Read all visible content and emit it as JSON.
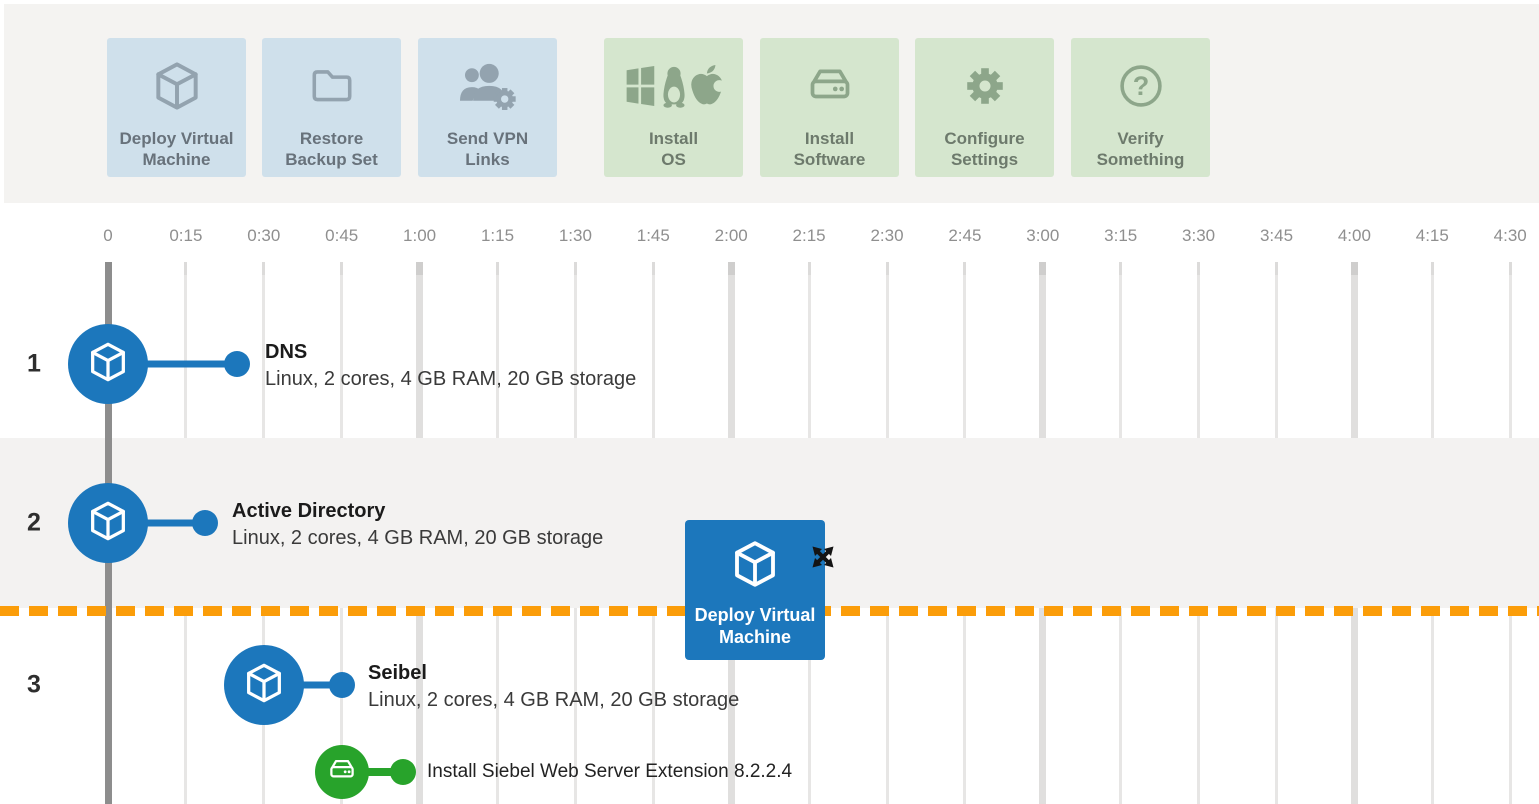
{
  "toolbar": {
    "buttons": [
      {
        "id": "deploy-virtual-machine",
        "label": "Deploy Virtual\nMachine",
        "icon": "cube-icon",
        "group": "blue"
      },
      {
        "id": "restore-backup-set",
        "label": "Restore\nBackup Set",
        "icon": "folder-icon",
        "group": "blue"
      },
      {
        "id": "send-vpn-links",
        "label": "Send VPN\nLinks",
        "icon": "users-gear-icon",
        "group": "blue"
      },
      {
        "id": "install-os",
        "label": "Install\nOS",
        "icon": "os-logos-icon",
        "group": "green"
      },
      {
        "id": "install-software",
        "label": "Install\nSoftware",
        "icon": "drive-icon",
        "group": "green"
      },
      {
        "id": "configure-settings",
        "label": "Configure\nSettings",
        "icon": "gear-icon",
        "group": "green"
      },
      {
        "id": "verify-something",
        "label": "Verify\nSomething",
        "icon": "question-icon",
        "group": "green"
      }
    ]
  },
  "timeline": {
    "axis_ticks": [
      "0",
      "0:15",
      "0:30",
      "0:45",
      "1:00",
      "1:15",
      "1:30",
      "1:45",
      "2:00",
      "2:15",
      "2:30",
      "2:45",
      "3:00",
      "3:15",
      "3:30",
      "3:45",
      "4:00",
      "4:15",
      "4:30"
    ],
    "hour_ticks": [
      "0",
      "1:00",
      "2:00",
      "3:00",
      "4:00"
    ]
  },
  "rows": [
    {
      "number": "1",
      "title": "DNS",
      "subtitle": "Linux, 2 cores, 4 GB RAM, 20 GB storage",
      "icon": "cube-icon",
      "start": "0"
    },
    {
      "number": "2",
      "title": "Active Directory",
      "subtitle": "Linux, 2 cores, 4 GB RAM, 20 GB storage",
      "icon": "cube-icon",
      "start": "0"
    },
    {
      "number": "3",
      "title": "Seibel",
      "subtitle": "Linux, 2 cores, 4 GB RAM, 20 GB storage",
      "icon": "cube-icon",
      "start": "0:30"
    }
  ],
  "subtasks": [
    {
      "row": "3",
      "title": "Install Siebel Web Server Extension 8.2.2.4",
      "icon": "drive-icon",
      "start": "0:45"
    }
  ],
  "drag_item": {
    "label": "Deploy Virtual Machine",
    "icon": "cube-icon",
    "cursor_icon": "move-arrows-icon"
  },
  "colors": {
    "accent_blue": "#1c77bc",
    "accent_green": "#28a32b",
    "drop_line_orange": "#fb9d09",
    "toolbar_bg": "#f4f3f1",
    "button_blue_bg": "#cfe0eb",
    "button_green_bg": "#d5e6ce",
    "button_blue_icon": "#93a3af",
    "button_green_icon": "#8da68a",
    "button_blue_label": "#68727b",
    "button_green_label": "#6d7a6c",
    "row_alt_bg": "#f3f2f1",
    "time_marker_gray": "#8d8d8d",
    "axis_label_gray": "#8f8f8f"
  }
}
